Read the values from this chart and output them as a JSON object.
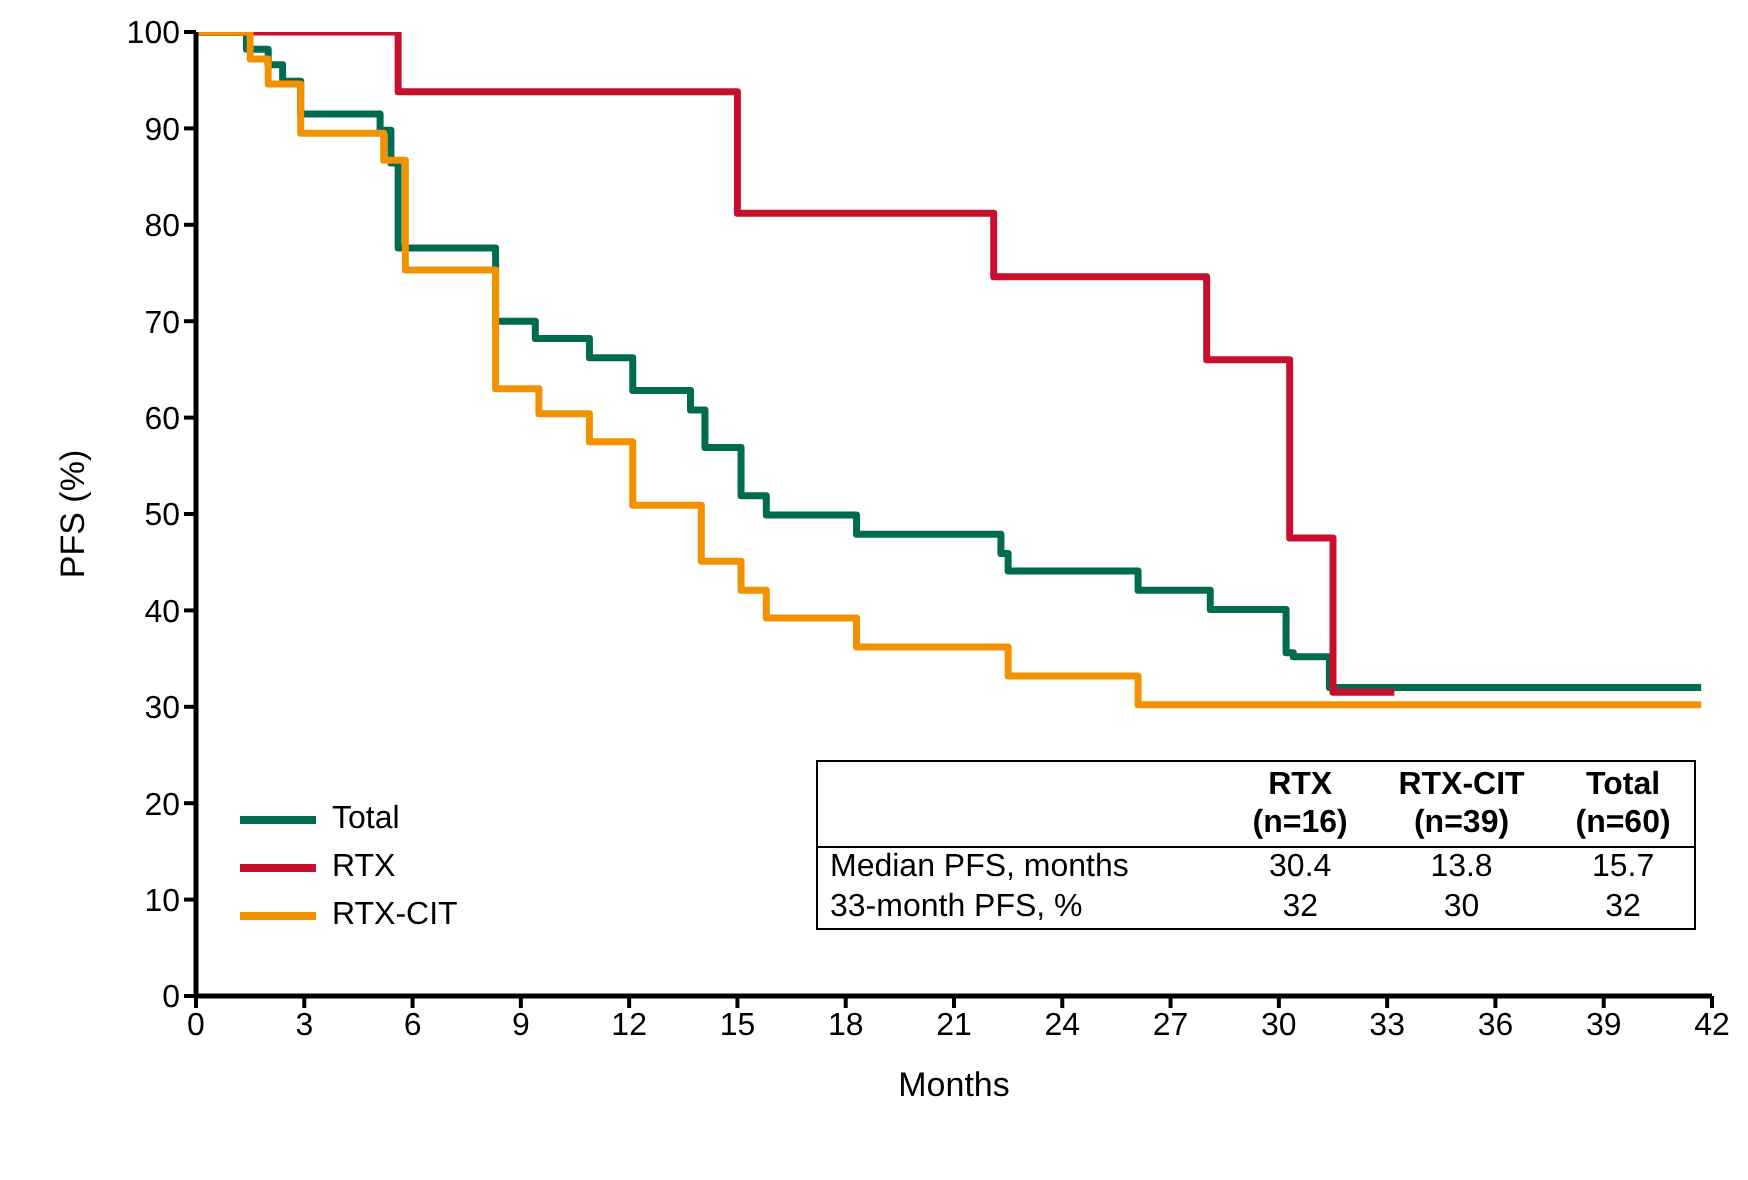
{
  "chart_data": {
    "type": "step",
    "xlabel": "Months",
    "ylabel": "PFS (%)",
    "xlim": [
      0,
      42
    ],
    "xticks": [
      0,
      3,
      6,
      9,
      12,
      15,
      18,
      21,
      24,
      27,
      30,
      33,
      36,
      39,
      42
    ],
    "ylim": [
      0,
      100
    ],
    "yticks": [
      0,
      10,
      20,
      30,
      40,
      50,
      60,
      70,
      80,
      90,
      100
    ],
    "legend": "bottom left",
    "series": [
      {
        "name": "Total",
        "color": "#006b4f",
        "x": [
          0,
          1.4,
          2.0,
          2.4,
          2.9,
          5.1,
          5.4,
          5.6,
          8.3,
          9.4,
          10.9,
          12.1,
          13.7,
          14.1,
          15.1,
          15.8,
          18.3,
          22.3,
          22.5,
          26.1,
          28.1,
          30.2,
          30.4,
          31.4,
          41.7
        ],
        "values": [
          100,
          98.2,
          96.6,
          94.9,
          91.5,
          89.8,
          86.4,
          77.6,
          70,
          68.2,
          66.2,
          62.8,
          60.8,
          56.9,
          51.9,
          49.9,
          47.9,
          45.9,
          44.1,
          42.1,
          40.1,
          35.6,
          35.2,
          32,
          32
        ]
      },
      {
        "name": "RTX",
        "color": "#c8102e",
        "x": [
          0,
          5.6,
          15.0,
          22.1,
          28.0,
          30.3,
          31.5,
          33.2
        ],
        "values": [
          100,
          93.8,
          81.2,
          74.6,
          66,
          47.5,
          31.5,
          31.5
        ]
      },
      {
        "name": "RTX-CIT",
        "color": "#f39200",
        "x": [
          0,
          1.5,
          2.0,
          2.9,
          5.2,
          5.8,
          8.3,
          9.5,
          10.9,
          12.1,
          14.0,
          15.1,
          15.8,
          18.3,
          22.5,
          26.1,
          41.7
        ],
        "values": [
          100,
          97.2,
          94.6,
          89.5,
          86.7,
          75.3,
          63,
          60.4,
          57.5,
          50.9,
          45.1,
          42.1,
          39.2,
          36.2,
          33.2,
          30.2,
          30.2
        ]
      }
    ],
    "annotations": [
      "RTX",
      "(n=16)",
      "RTX-CIT",
      "(n=39)",
      "Total",
      "(n=60)",
      "Median PFS, months",
      "30.4",
      "13.8",
      "15.7",
      "33-month PFS, %",
      "32",
      "30",
      "32"
    ]
  }
}
